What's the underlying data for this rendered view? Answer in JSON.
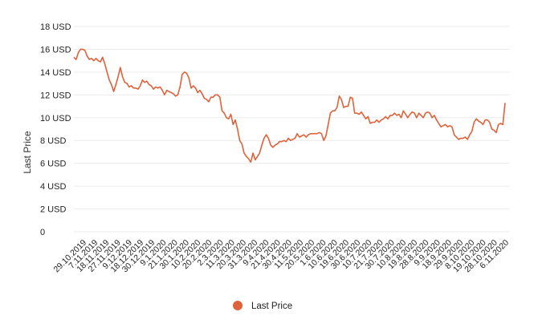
{
  "chart_data": {
    "type": "line",
    "title": "",
    "xlabel": "",
    "ylabel": "Last Price",
    "ylim": [
      0,
      18
    ],
    "grid": "horizontal",
    "legend_position": "bottom",
    "y_ticks": [
      "0",
      "2 USD",
      "4 USD",
      "6 USD",
      "8 USD",
      "10 USD",
      "12 USD",
      "14 USD",
      "16 USD",
      "18 USD"
    ],
    "x_ticks": [
      "29.10.2019",
      "7.11.2019",
      "18.11.2019",
      "27.11.2019",
      "9.12.2019",
      "18.12.2019",
      "30.12.2019",
      "9.1.2020",
      "21.1.2020",
      "30.1.2020",
      "10.2.2020",
      "20.2.2020",
      "2.3.2020",
      "11.3.2020",
      "20.3.2020",
      "31.3.2020",
      "9.4.2020",
      "21.4.2020",
      "30.4.2020",
      "11.5.2020",
      "20.5.2020",
      "1.6.2020",
      "10.6.2020",
      "19.6.2020",
      "30.6.2020",
      "10.7.2020",
      "21.7.2020",
      "30.7.2020",
      "10.8.2020",
      "19.8.2020",
      "28.8.2020",
      "9.9.2020",
      "18.9.2020",
      "29.9.2020",
      "8.10.2020",
      "19.10.2020",
      "28.10.2020",
      "6.11.2020"
    ],
    "series": [
      {
        "name": "Last Price",
        "color": "#e0623a",
        "values": [
          15.3,
          15.1,
          15.7,
          16.0,
          16.0,
          15.9,
          15.4,
          15.1,
          15.2,
          15.0,
          15.2,
          15.0,
          14.9,
          15.3,
          14.7,
          14.0,
          13.3,
          12.9,
          12.3,
          12.9,
          13.6,
          14.4,
          13.6,
          13.1,
          13.0,
          12.7,
          12.8,
          12.6,
          12.6,
          12.5,
          12.8,
          13.3,
          13.1,
          13.2,
          12.9,
          12.8,
          12.5,
          12.7,
          12.6,
          12.7,
          12.4,
          12.0,
          12.4,
          12.3,
          12.2,
          12.1,
          11.9,
          12.0,
          12.7,
          13.8,
          14.0,
          13.9,
          13.5,
          12.6,
          12.8,
          12.6,
          12.2,
          12.4,
          12.1,
          11.7,
          11.6,
          11.4,
          11.8,
          11.8,
          12.0,
          12.0,
          11.8,
          10.6,
          10.4,
          10.0,
          9.9,
          10.3,
          9.4,
          9.8,
          9.0,
          8.0,
          7.7,
          6.9,
          6.6,
          6.4,
          6.1,
          6.9,
          6.3,
          6.6,
          6.9,
          7.6,
          8.2,
          8.5,
          8.2,
          7.6,
          7.4,
          7.6,
          7.7,
          7.9,
          7.9,
          8.0,
          7.9,
          8.2,
          8.0,
          8.1,
          8.2,
          8.6,
          8.3,
          8.4,
          8.5,
          8.3,
          8.5,
          8.6,
          8.6,
          8.6,
          8.6,
          8.7,
          8.6,
          8.0,
          8.4,
          9.4,
          10.4,
          10.6,
          10.6,
          10.9,
          11.9,
          11.6,
          10.9,
          11.0,
          11.0,
          11.8,
          11.7,
          10.4,
          10.4,
          10.3,
          10.5,
          10.2,
          9.9,
          10.1,
          9.5,
          9.6,
          9.6,
          9.8,
          9.6,
          9.8,
          9.9,
          10.1,
          9.9,
          10.2,
          10.2,
          10.4,
          10.2,
          10.3,
          10.0,
          10.6,
          10.3,
          10.0,
          10.3,
          10.5,
          10.4,
          10.0,
          10.4,
          10.2,
          10.0,
          10.4,
          10.5,
          10.4,
          10.0,
          10.2,
          9.8,
          9.5,
          9.2,
          9.3,
          9.4,
          9.2,
          9.3,
          9.2,
          8.5,
          8.3,
          8.1,
          8.2,
          8.2,
          8.3,
          8.1,
          8.5,
          8.8,
          9.6,
          9.9,
          9.7,
          9.6,
          9.4,
          9.8,
          9.8,
          9.6,
          9.0,
          8.9,
          8.7,
          9.4,
          9.5,
          9.4,
          11.3
        ]
      }
    ]
  }
}
